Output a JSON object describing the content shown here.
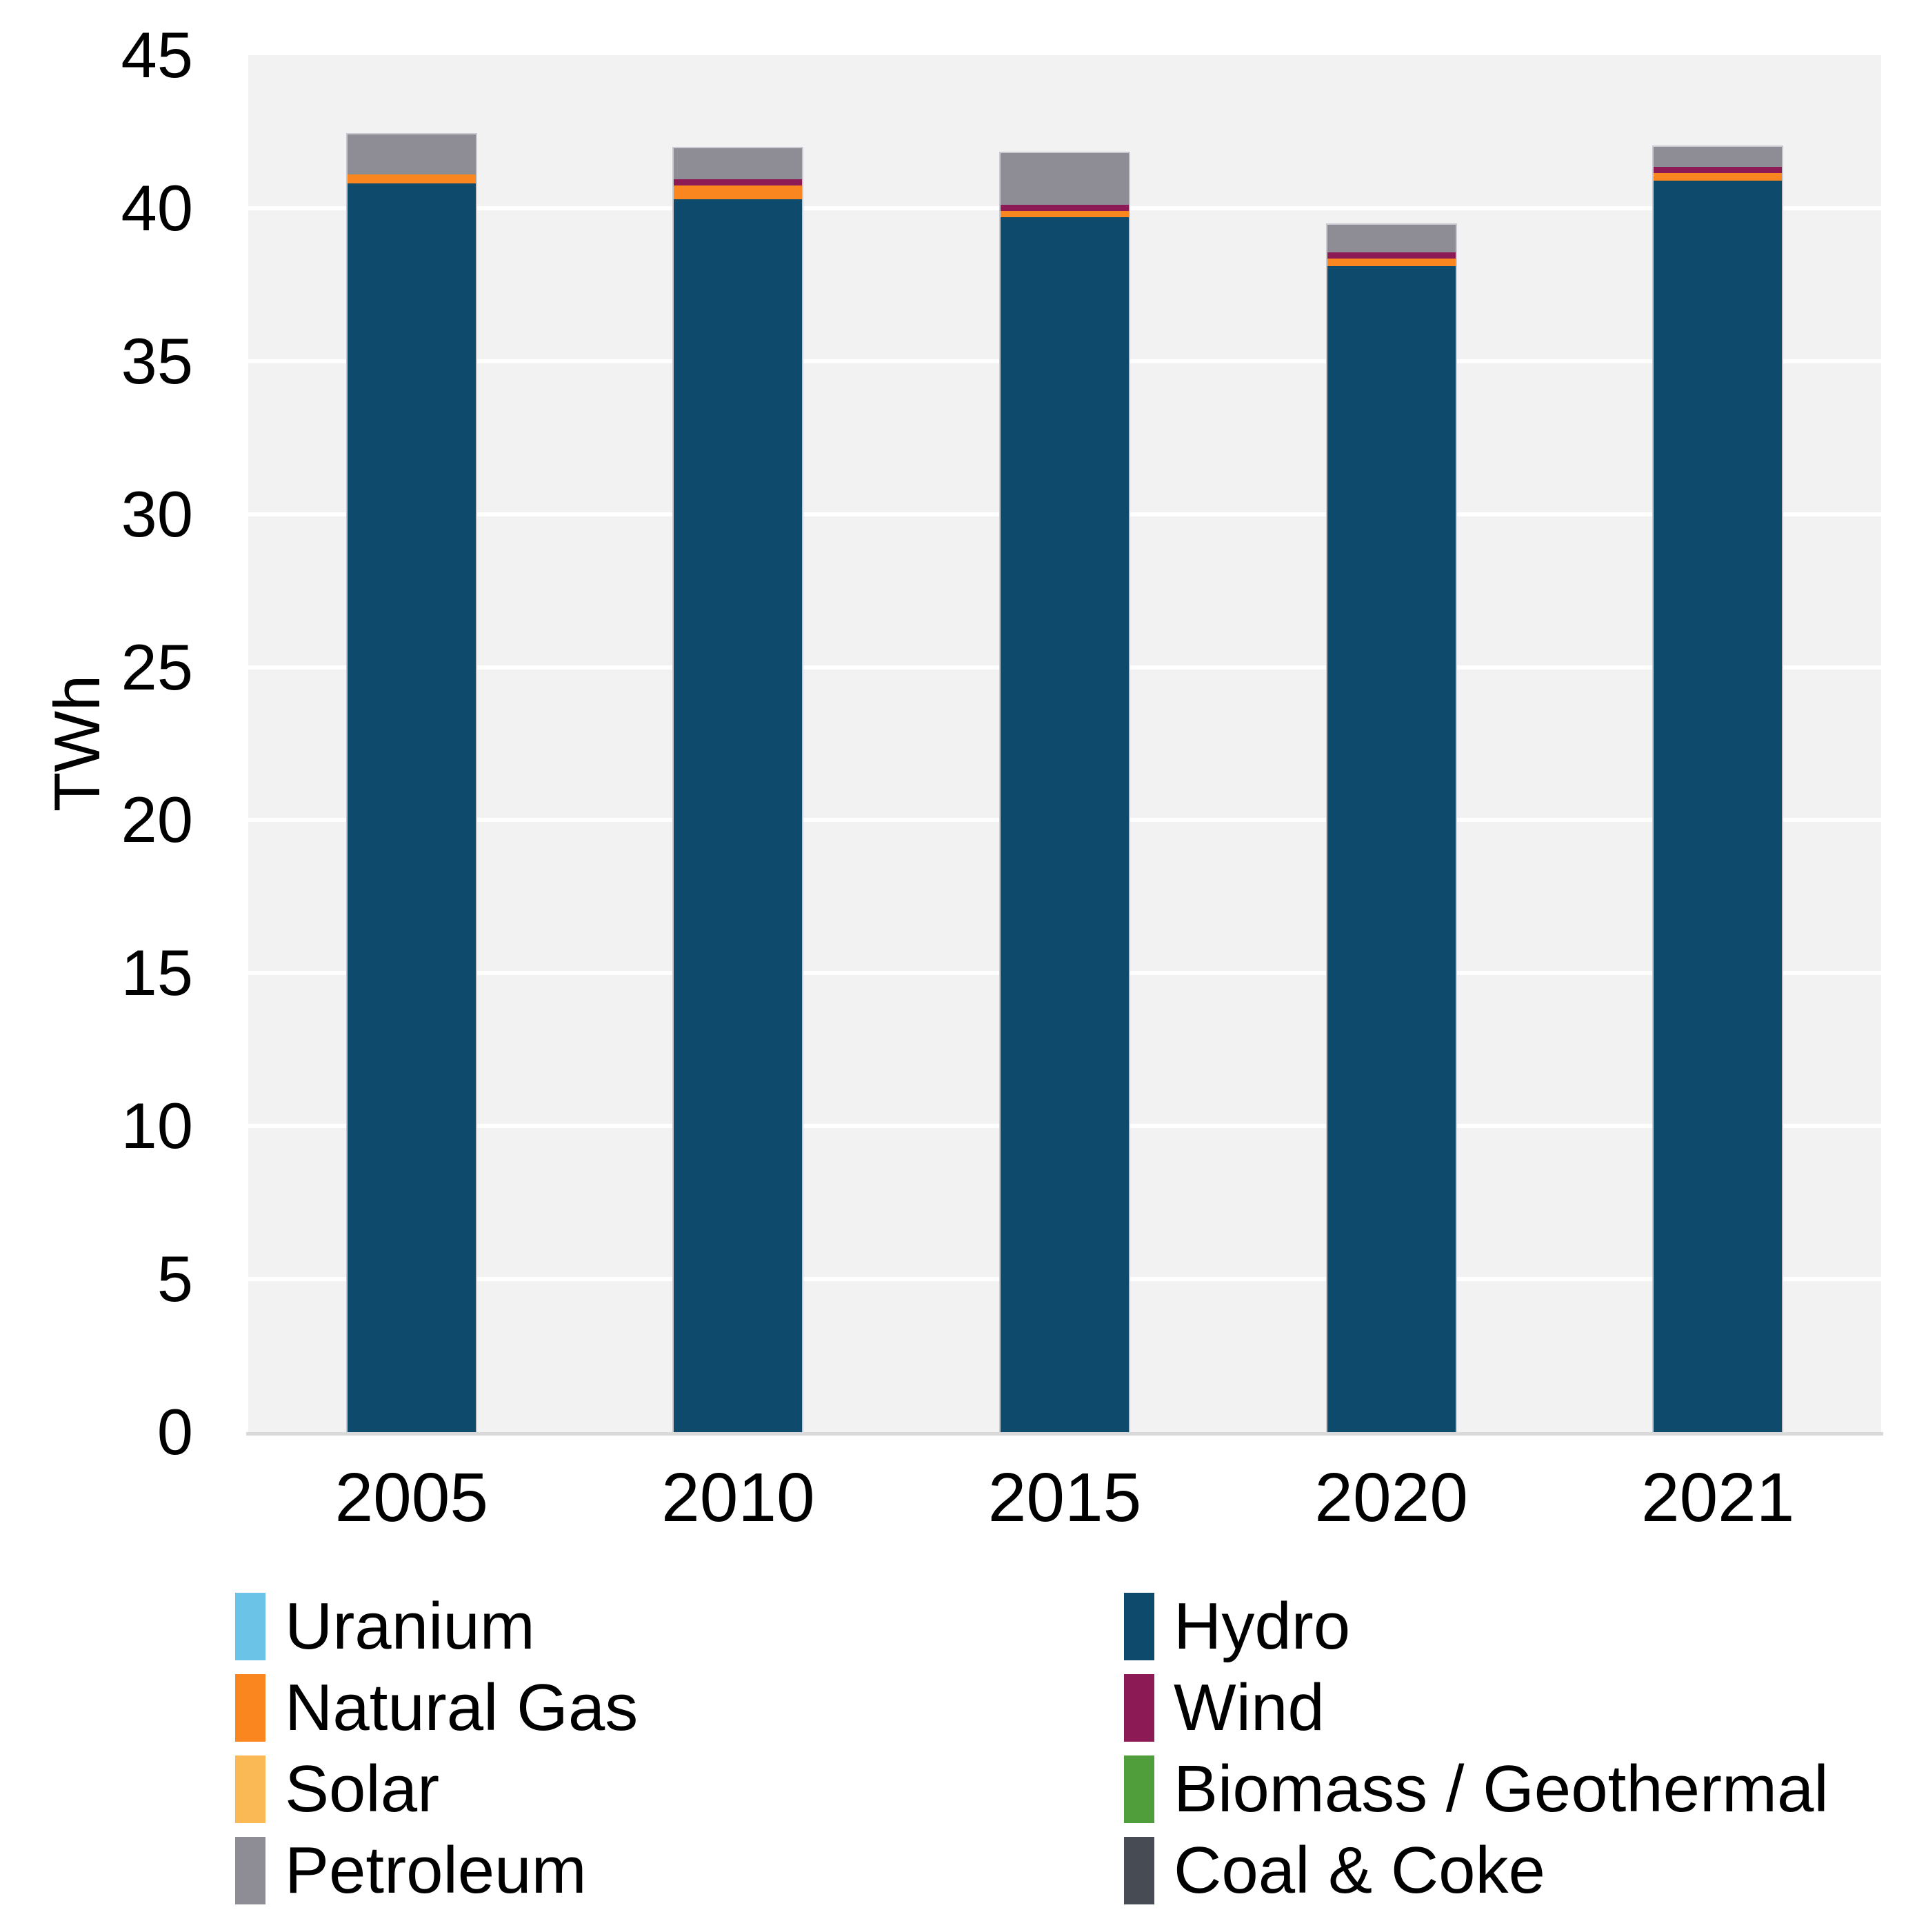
{
  "chart_data": {
    "type": "bar",
    "stacked": true,
    "title": "",
    "xlabel": "",
    "ylabel": "TWh",
    "categories": [
      "2005",
      "2010",
      "2015",
      "2020",
      "2021"
    ],
    "series": [
      {
        "name": "Uranium",
        "color": "#6BC4E8",
        "values": [
          0,
          0,
          0,
          0,
          0
        ]
      },
      {
        "name": "Hydro",
        "color": "#0D4A6B",
        "values": [
          40.8,
          40.3,
          39.7,
          38.1,
          40.9
        ]
      },
      {
        "name": "Natural Gas",
        "color": "#F9861F",
        "values": [
          0.3,
          0.45,
          0.2,
          0.25,
          0.25
        ]
      },
      {
        "name": "Wind",
        "color": "#8B1A55",
        "values": [
          0,
          0.2,
          0.2,
          0.2,
          0.2
        ]
      },
      {
        "name": "Solar",
        "color": "#FBB955",
        "values": [
          0,
          0,
          0,
          0,
          0
        ]
      },
      {
        "name": "Biomass / Geothermal",
        "color": "#509E3B",
        "values": [
          0,
          0,
          0,
          0,
          0
        ]
      },
      {
        "name": "Petroleum",
        "color": "#8E8D96",
        "values": [
          1.3,
          1.0,
          1.7,
          0.9,
          0.65
        ]
      },
      {
        "name": "Coal & Coke",
        "color": "#474B54",
        "values": [
          0,
          0,
          0,
          0,
          0
        ]
      }
    ],
    "totals": [
      42.4,
      41.95,
      41.8,
      39.45,
      42.0
    ],
    "ylim": [
      0,
      45
    ],
    "ytick_step": 5,
    "yticks": [
      "0",
      "5",
      "10",
      "15",
      "20",
      "25",
      "30",
      "35",
      "40",
      "45"
    ],
    "grid": true,
    "legend_position": "bottom",
    "legend_columns": [
      [
        "Uranium",
        "Natural Gas",
        "Solar",
        "Petroleum"
      ],
      [
        "Hydro",
        "Wind",
        "Biomass / Geothermal",
        "Coal & Coke"
      ]
    ]
  },
  "colors": {
    "plot_bg": "#F2F2F2",
    "gridline": "#FFFFFF",
    "baseline": "#D9D9D9",
    "bar_stroke": "#C9C9D2",
    "text": "#000000"
  }
}
